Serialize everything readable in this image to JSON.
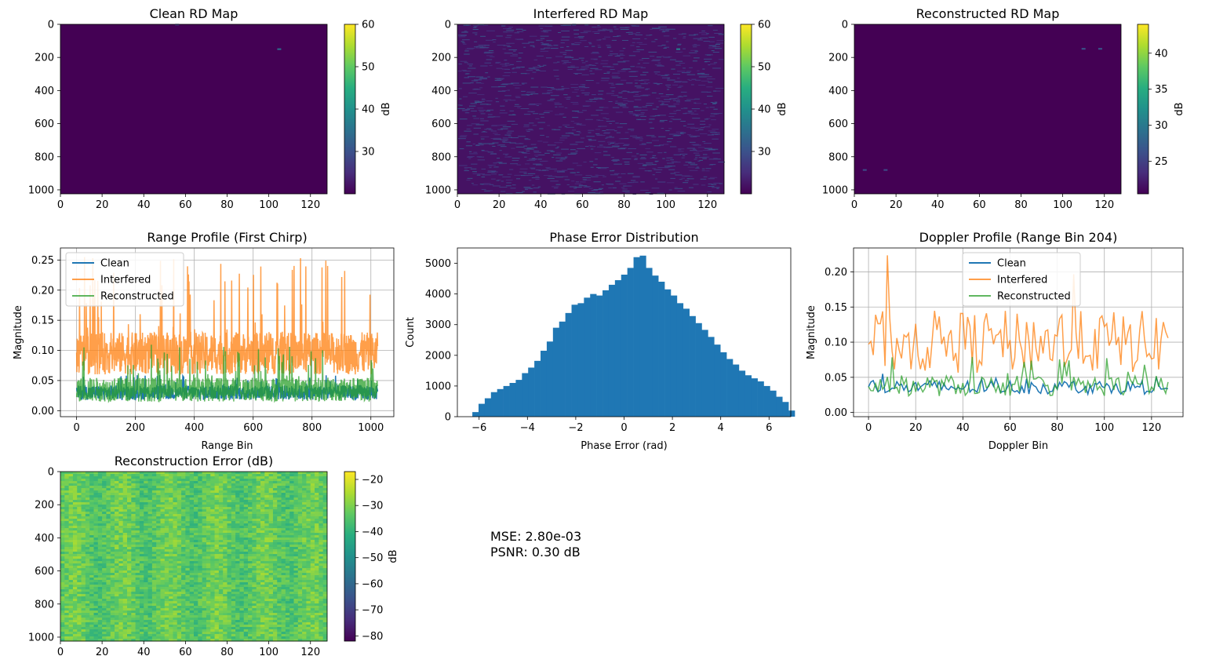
{
  "figure": {
    "metrics": {
      "mse": "MSE: 2.80e-03",
      "psnr": "PSNR: 0.30 dB"
    }
  },
  "chart_data": [
    {
      "type": "heatmap",
      "title": "Clean RD Map",
      "xlabel": "",
      "ylabel": "",
      "xlim": [
        0,
        128
      ],
      "ylim": [
        1024,
        0
      ],
      "xticks": [
        0,
        20,
        40,
        60,
        80,
        100,
        120
      ],
      "yticks": [
        0,
        200,
        400,
        600,
        800,
        1000
      ],
      "colormap": "viridis",
      "colorbar": {
        "label": "dB",
        "range": [
          20,
          60
        ],
        "ticks": [
          30,
          40,
          50,
          60
        ]
      },
      "base_value": 20,
      "texture": "flat",
      "hotspots": [
        {
          "x": 105,
          "y": 150,
          "value": 35
        },
        {
          "x": 56,
          "y": 2,
          "value": 28
        }
      ]
    },
    {
      "type": "heatmap",
      "title": "Interfered RD Map",
      "xlabel": "",
      "ylabel": "",
      "xlim": [
        0,
        128
      ],
      "ylim": [
        1024,
        0
      ],
      "xticks": [
        0,
        20,
        40,
        60,
        80,
        100,
        120
      ],
      "yticks": [
        0,
        200,
        400,
        600,
        800,
        1000
      ],
      "colormap": "viridis",
      "colorbar": {
        "label": "dB",
        "range": [
          20,
          60
        ],
        "ticks": [
          30,
          40,
          50,
          60
        ]
      },
      "base_value": 22,
      "texture": "streaks",
      "hotspots": [
        {
          "x": 106,
          "y": 150,
          "value": 38
        },
        {
          "x": 56,
          "y": 2,
          "value": 30
        }
      ]
    },
    {
      "type": "heatmap",
      "title": "Reconstructed RD Map",
      "xlabel": "",
      "ylabel": "",
      "xlim": [
        0,
        128
      ],
      "ylim": [
        1024,
        0
      ],
      "xticks": [
        0,
        20,
        40,
        60,
        80,
        100,
        120
      ],
      "yticks": [
        0,
        200,
        400,
        600,
        800,
        1000
      ],
      "colormap": "viridis",
      "colorbar": {
        "label": "dB",
        "range": [
          20.5,
          44
        ],
        "ticks": [
          25,
          30,
          35,
          40
        ]
      },
      "base_value": 20.5,
      "texture": "flat",
      "hotspots": [
        {
          "x": 110,
          "y": 148,
          "value": 27
        },
        {
          "x": 118,
          "y": 148,
          "value": 27
        },
        {
          "x": 5,
          "y": 880,
          "value": 26
        },
        {
          "x": 15,
          "y": 880,
          "value": 26
        }
      ]
    },
    {
      "type": "line",
      "title": "Range Profile (First Chirp)",
      "xlabel": "Range Bin",
      "ylabel": "Magnitude",
      "xlim": [
        -55,
        1078
      ],
      "ylim": [
        -0.01,
        0.27
      ],
      "xticks": [
        0,
        200,
        400,
        600,
        800,
        1000
      ],
      "yticks": [
        0.0,
        0.05,
        0.1,
        0.15,
        0.2,
        0.25
      ],
      "ytick_labels": [
        "0.00",
        "0.05",
        "0.10",
        "0.15",
        "0.20",
        "0.25"
      ],
      "grid": true,
      "legend": "upper-left",
      "n_points": 1024,
      "series": [
        {
          "name": "Clean",
          "color": "#1f77b4",
          "mean": 0.03,
          "spread": 0.012,
          "peak": 0.06
        },
        {
          "name": "Interfered",
          "color": "#ff7f0e",
          "mean": 0.095,
          "spread": 0.035,
          "peak": 0.255
        },
        {
          "name": "Reconstructed",
          "color": "#2ca02c",
          "mean": 0.035,
          "spread": 0.02,
          "peak": 0.11
        }
      ]
    },
    {
      "type": "bar",
      "title": "Phase Error Distribution",
      "xlabel": "Phase Error (rad)",
      "ylabel": "Count",
      "xlim": [
        -6.9,
        6.9
      ],
      "ylim": [
        0,
        5500
      ],
      "xticks": [
        -6,
        -4,
        -2,
        0,
        2,
        4,
        6
      ],
      "yticks": [
        0,
        1000,
        2000,
        3000,
        4000,
        5000
      ],
      "bin_start": -6.28,
      "bin_width": 0.2566,
      "values": [
        150,
        420,
        600,
        800,
        900,
        1000,
        1100,
        1200,
        1420,
        1600,
        1820,
        2150,
        2450,
        2900,
        3100,
        3380,
        3650,
        3700,
        3880,
        4000,
        3950,
        4120,
        4300,
        4450,
        4630,
        4850,
        5200,
        5250,
        4850,
        4600,
        4400,
        4150,
        3950,
        3700,
        3520,
        3280,
        3050,
        2830,
        2600,
        2350,
        2100,
        1880,
        1700,
        1500,
        1350,
        1250,
        1150,
        1000,
        850,
        650,
        480,
        200
      ]
    },
    {
      "type": "line",
      "title": "Doppler Profile (Range Bin 204)",
      "xlabel": "Doppler Bin",
      "ylabel": "Magnitude",
      "xlim": [
        -6.35,
        133.35
      ],
      "ylim": [
        -0.006,
        0.234
      ],
      "xticks": [
        0,
        20,
        40,
        60,
        80,
        100,
        120
      ],
      "yticks": [
        0.0,
        0.05,
        0.1,
        0.15,
        0.2
      ],
      "ytick_labels": [
        "0.00",
        "0.05",
        "0.10",
        "0.15",
        "0.20"
      ],
      "grid": true,
      "legend": "upper-center",
      "n_points": 128,
      "series": [
        {
          "name": "Clean",
          "color": "#1f77b4",
          "mean": 0.036,
          "spread": 0.01,
          "peak": 0.055
        },
        {
          "name": "Interfered",
          "color": "#ff7f0e",
          "mean": 0.1,
          "spread": 0.045,
          "peak": 0.225
        },
        {
          "name": "Reconstructed",
          "color": "#2ca02c",
          "mean": 0.038,
          "spread": 0.015,
          "peak": 0.08
        }
      ]
    },
    {
      "type": "heatmap",
      "title": "Reconstruction Error (dB)",
      "xlabel": "",
      "ylabel": "",
      "xlim": [
        0,
        128
      ],
      "ylim": [
        1024,
        0
      ],
      "xticks": [
        0,
        20,
        40,
        60,
        80,
        100,
        120
      ],
      "yticks": [
        0,
        200,
        400,
        600,
        800,
        1000
      ],
      "colormap": "viridis",
      "colorbar": {
        "label": "dB",
        "range": [
          -82,
          -17
        ],
        "ticks": [
          -80,
          -70,
          -60,
          -50,
          -40,
          -30,
          -20
        ]
      },
      "base_value": -33,
      "texture": "noise",
      "hotspots": []
    }
  ]
}
